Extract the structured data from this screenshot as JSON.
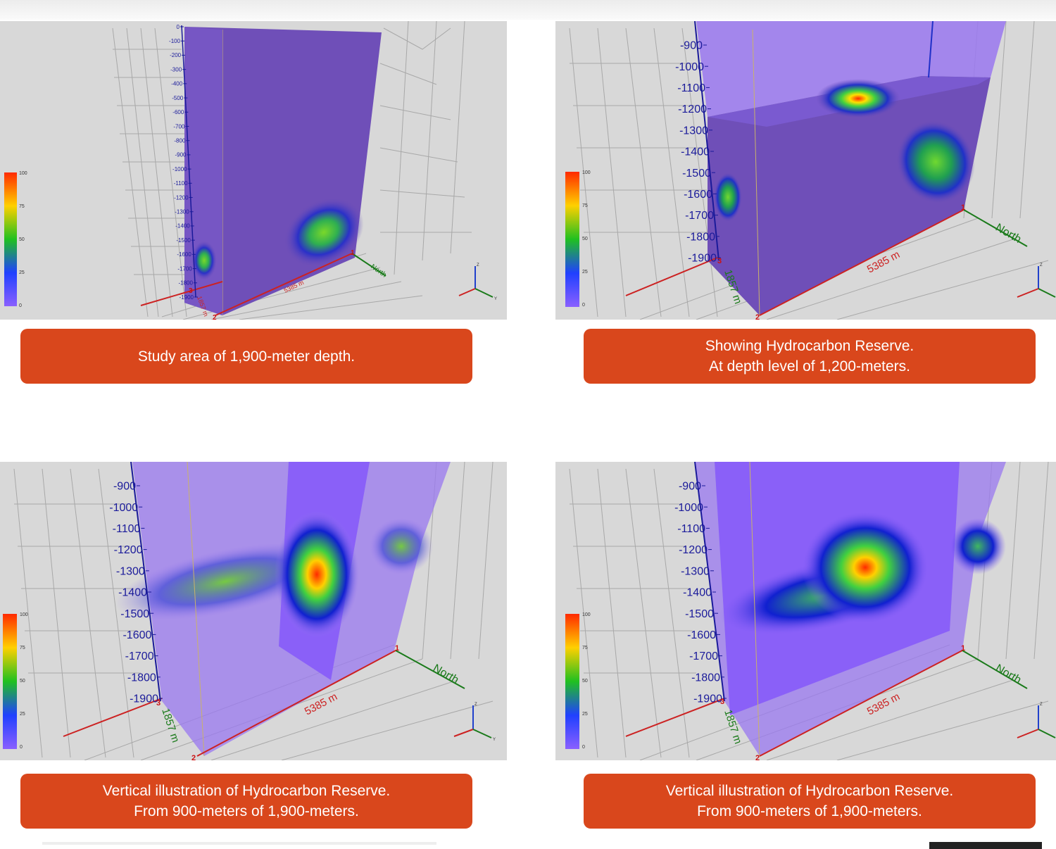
{
  "panels": [
    {
      "id": "study-area",
      "caption": [
        "Study area of 1,900-meter depth."
      ],
      "depth_ticks": [
        "0",
        "-100",
        "-200",
        "-300",
        "-400",
        "-500",
        "-600",
        "-700",
        "-800",
        "-900",
        "-1000",
        "-1100",
        "-1200",
        "-1300",
        "-1400",
        "-1500",
        "-1600",
        "-1700",
        "-1800",
        "-1900"
      ],
      "colorbar_ticks": [
        "100",
        "75",
        "50",
        "25",
        "0"
      ],
      "scale_x": "5385 m",
      "scale_y": "1857 m",
      "north": "North",
      "corner_marks": [
        "1",
        "2",
        "3"
      ],
      "axis_labels": [
        "Z",
        "Y"
      ]
    },
    {
      "id": "horizontal-slice",
      "caption": [
        "Showing Hydrocarbon Reserve.",
        "At depth level of 1,200-meters."
      ],
      "depth_ticks": [
        "-900",
        "-1000",
        "-1100",
        "-1200",
        "-1300",
        "-1400",
        "-1500",
        "-1600",
        "-1700",
        "-1800",
        "-1900"
      ],
      "colorbar_ticks": [
        "100",
        "75",
        "50",
        "25",
        "0"
      ],
      "scale_x": "5385 m",
      "scale_y": "1857 m",
      "north": "North",
      "corner_marks": [
        "1",
        "2",
        "3"
      ],
      "axis_labels": [
        "Z",
        "Y"
      ]
    },
    {
      "id": "vertical-slice-a",
      "caption": [
        "Vertical illustration of Hydrocarbon Reserve.",
        "From 900-meters of 1,900-meters."
      ],
      "depth_ticks": [
        "-900",
        "-1000",
        "-1100",
        "-1200",
        "-1300",
        "-1400",
        "-1500",
        "-1600",
        "-1700",
        "-1800",
        "-1900"
      ],
      "colorbar_ticks": [
        "100",
        "75",
        "50",
        "25",
        "0"
      ],
      "scale_x": "5385 m",
      "scale_y": "1857 m",
      "north": "North",
      "corner_marks": [
        "1",
        "2",
        "3"
      ],
      "axis_labels": [
        "Z",
        "Y"
      ]
    },
    {
      "id": "vertical-slice-b",
      "caption": [
        "Vertical illustration of Hydrocarbon Reserve.",
        "From 900-meters of 1,900-meters."
      ],
      "depth_ticks": [
        "-900",
        "-1000",
        "-1100",
        "-1200",
        "-1300",
        "-1400",
        "-1500",
        "-1600",
        "-1700",
        "-1800",
        "-1900"
      ],
      "colorbar_ticks": [
        "100",
        "75",
        "50",
        "25",
        "0"
      ],
      "scale_x": "5385 m",
      "scale_y": "1857 m",
      "north": "North",
      "corner_marks": [
        "1",
        "2",
        "3"
      ],
      "axis_labels": [
        "Z",
        "Y"
      ]
    }
  ],
  "colors": {
    "volume": "#6f4fb8",
    "volume_light": "#9a78f0",
    "caption_bg": "#d9471c",
    "scale_red": "#cc2222",
    "north_green": "#1a7a1a"
  }
}
